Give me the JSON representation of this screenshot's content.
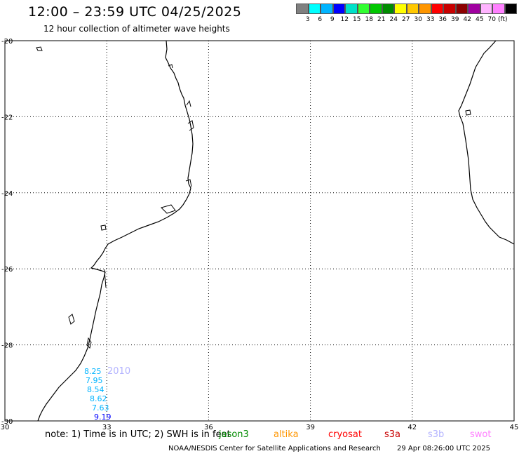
{
  "header": {
    "title": "12:00 – 23:59 UTC 04/25/2025",
    "subtitle": "12 hour collection of altimeter wave heights"
  },
  "legend": {
    "colors": [
      "#808080",
      "#00ffff",
      "#00b4ff",
      "#0000ff",
      "#00e1c8",
      "#32ff32",
      "#00c800",
      "#008c00",
      "#ffff00",
      "#ffc800",
      "#ff9600",
      "#ff0000",
      "#c80000",
      "#8c0000",
      "#a000a0",
      "#ffb4ff",
      "#ff80ff",
      "#000000"
    ],
    "ticks": [
      "3",
      "6",
      "9",
      "12",
      "15",
      "18",
      "21",
      "24",
      "27",
      "30",
      "33",
      "36",
      "39",
      "42",
      "45",
      "70"
    ],
    "unit": "(ft)"
  },
  "map": {
    "lat_labels": [
      "-20",
      "-22",
      "-24",
      "-26",
      "-28",
      "-30"
    ],
    "lon_labels": [
      "30",
      "33",
      "36",
      "39",
      "42",
      "45"
    ],
    "track_label": "2010",
    "wave_heights": [
      {
        "value": "8.25",
        "color": "#00b4ff"
      },
      {
        "value": "7.95",
        "color": "#00b4ff"
      },
      {
        "value": "8.54",
        "color": "#00b4ff"
      },
      {
        "value": "8.62",
        "color": "#00b4ff"
      },
      {
        "value": "7.63",
        "color": "#00b4ff"
      },
      {
        "value": "9.19",
        "color": "#0000ff"
      }
    ]
  },
  "footer": {
    "note": "note:  1) Time is in UTC; 2) SWH is in feet",
    "satellites": [
      {
        "name": "jason3",
        "color": "#008c00"
      },
      {
        "name": "altika",
        "color": "#ff9600"
      },
      {
        "name": "cryosat",
        "color": "#ff0000"
      },
      {
        "name": "s3a",
        "color": "#c80000"
      },
      {
        "name": "s3b",
        "color": "#b4b4ff"
      },
      {
        "name": "swot",
        "color": "#ff80ff"
      }
    ],
    "credit": "NOAA/NESDIS Center for Satellite Applications and Research",
    "timestamp": "29 Apr 08:26:00 UTC 2025"
  }
}
